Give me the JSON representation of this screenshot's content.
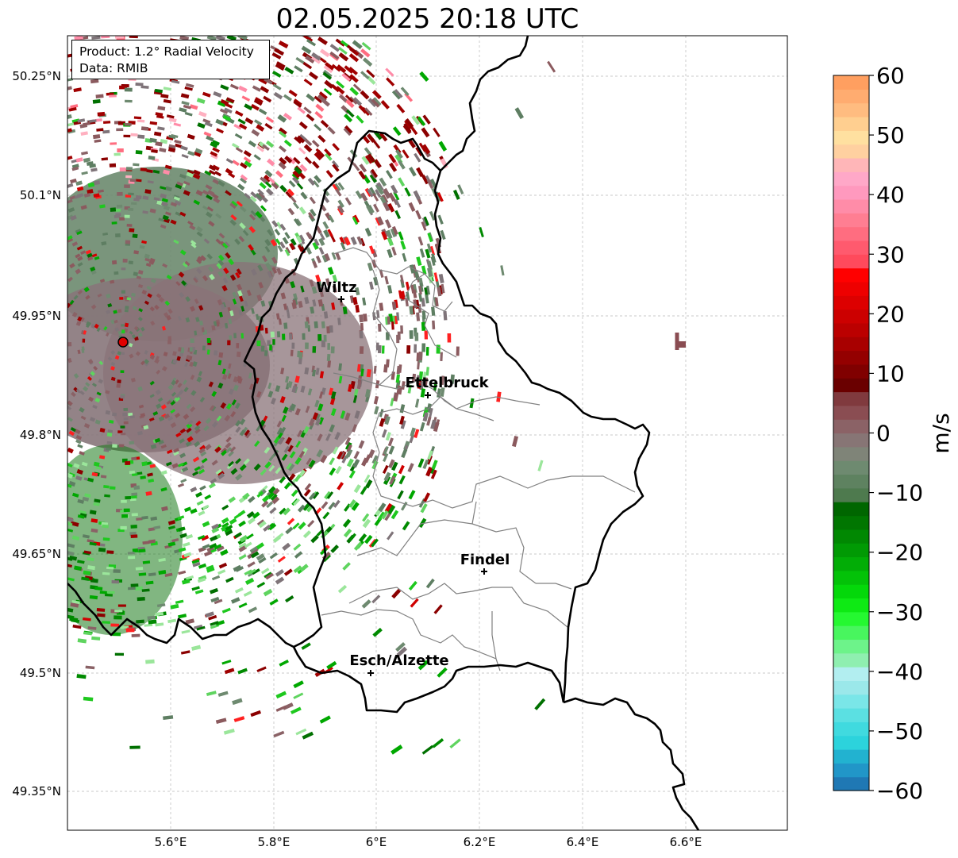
{
  "title": "02.05.2025 20:18 UTC",
  "info_box": {
    "product": "Product: 1.2° Radial Velocity",
    "data": "Data: RMIB"
  },
  "axes": {
    "lon_ticks": [
      "5.6°E",
      "5.8°E",
      "6°E",
      "6.2°E",
      "6.4°E",
      "6.6°E"
    ],
    "lat_ticks": [
      "50.25°N",
      "50.1°N",
      "49.95°N",
      "49.8°N",
      "49.65°N",
      "49.5°N",
      "49.35°N"
    ]
  },
  "cities": [
    {
      "name": "Wiltz"
    },
    {
      "name": "Ettelbruck"
    },
    {
      "name": "Findel"
    },
    {
      "name": "Esch/Alzette"
    }
  ],
  "colorbar": {
    "unit": "m/s",
    "ticks": [
      "60",
      "50",
      "40",
      "30",
      "20",
      "10",
      "0",
      "−10",
      "−20",
      "−30",
      "−40",
      "−50",
      "−60"
    ],
    "range": [
      -60,
      60
    ]
  },
  "colors": {
    "border": "#000000",
    "canton_lines": "#808080",
    "radar_site": "#e00000",
    "grid": "#b0b0b0"
  }
}
